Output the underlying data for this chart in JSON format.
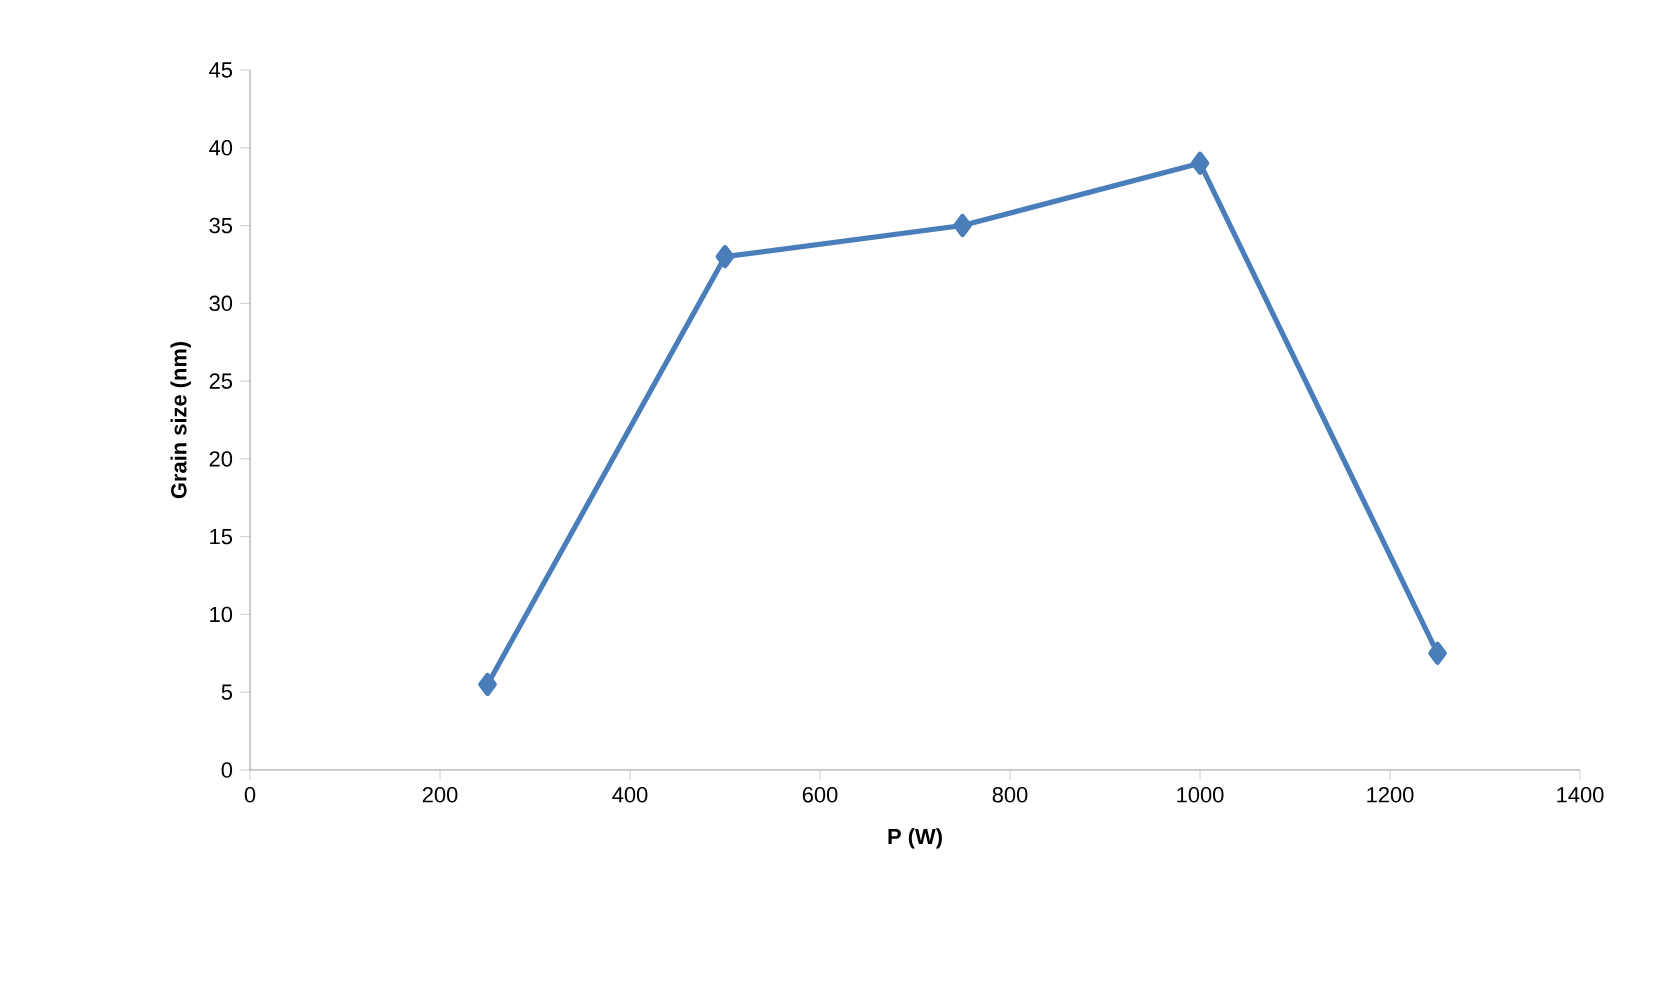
{
  "chart_data": {
    "type": "line",
    "xlabel": "P (W)",
    "ylabel": "Grain size  (nm)",
    "x": [
      250,
      500,
      750,
      1000,
      1250
    ],
    "series": [
      {
        "color": "#4a7ebb",
        "values": [
          5.5,
          33,
          35,
          39,
          7.5
        ]
      }
    ],
    "xlim": [
      0,
      1400
    ],
    "xticks": [
      0,
      200,
      400,
      600,
      800,
      1000,
      1200,
      1400
    ],
    "ylim": [
      0,
      45
    ],
    "yticks": [
      0,
      5,
      10,
      15,
      20,
      25,
      30,
      35,
      40,
      45
    ],
    "grid": false,
    "marker": "diamond",
    "line_style": "solid"
  }
}
